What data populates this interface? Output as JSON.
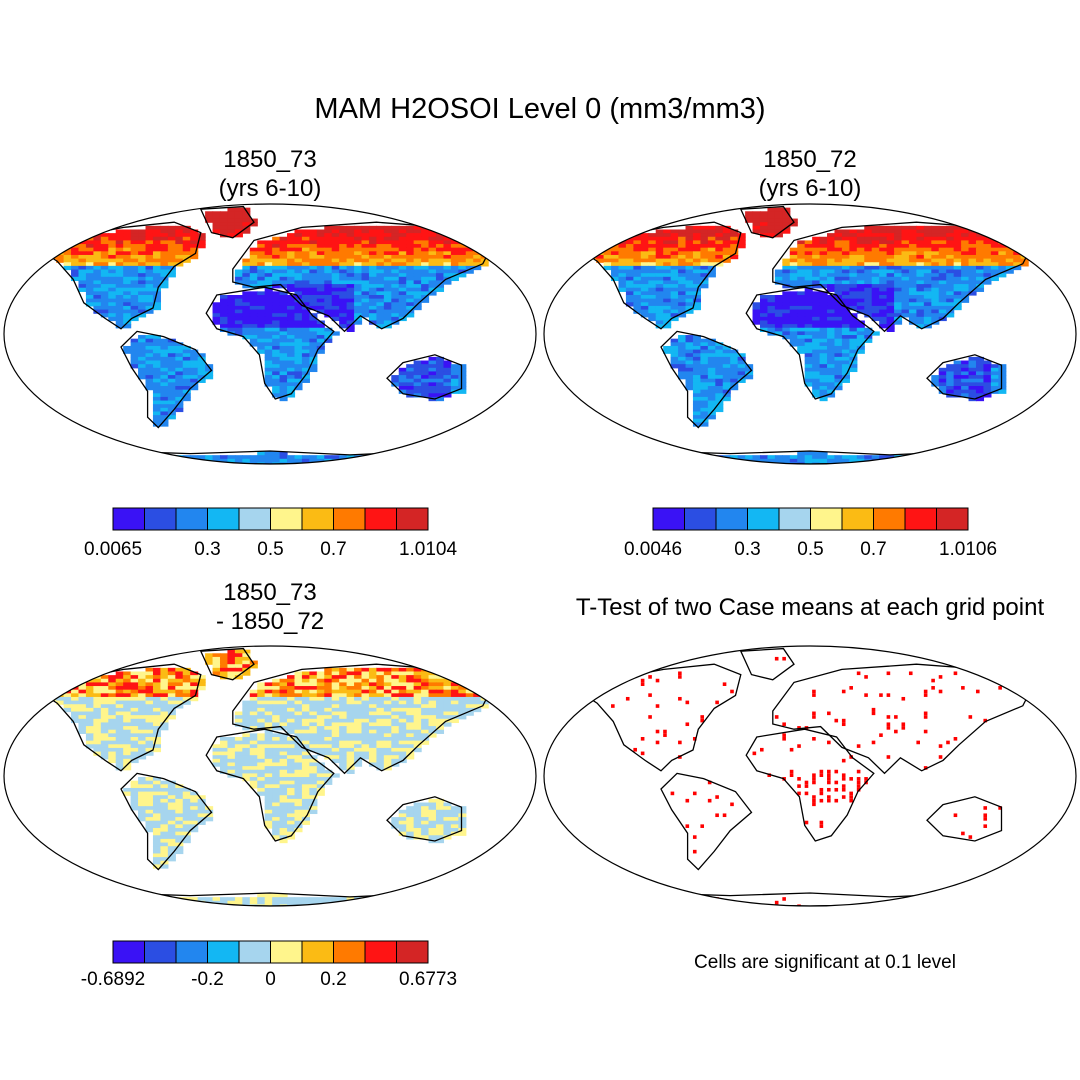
{
  "figure": {
    "title": "MAM H2OSOI Level 0 (mm3/mm3)",
    "colors": {
      "palette": [
        "#3a12f5",
        "#2b4ee3",
        "#2286ef",
        "#13b7f3",
        "#a6d5ee",
        "#fff58c",
        "#fbbb14",
        "#ff7a00",
        "#ff1414",
        "#d42525"
      ],
      "ocean": "#ffffff",
      "coastline": "#000000",
      "significance": "#ff0000"
    }
  },
  "panels": [
    {
      "title_line1": "1850_73",
      "title_line2": "(yrs 6-10)",
      "field": "moisture",
      "colorbar_ticks": [
        "0.0065",
        "0.3",
        "0.5",
        "0.7",
        "1.0104"
      ]
    },
    {
      "title_line1": "1850_72",
      "title_line2": "(yrs 6-10)",
      "field": "moisture",
      "colorbar_ticks": [
        "0.0046",
        "0.3",
        "0.5",
        "0.7",
        "1.0106"
      ]
    },
    {
      "title_line1": "1850_73",
      "title_line2": "- 1850_72",
      "field": "difference",
      "colorbar_ticks": [
        "-0.6892",
        "-0.2",
        "0",
        "0.2",
        "0.6773"
      ]
    },
    {
      "title_line1": "T-Test of two Case means at each grid point",
      "title_line2": "",
      "field": "significance",
      "note": "Cells are significant at 0.1 level"
    }
  ]
}
